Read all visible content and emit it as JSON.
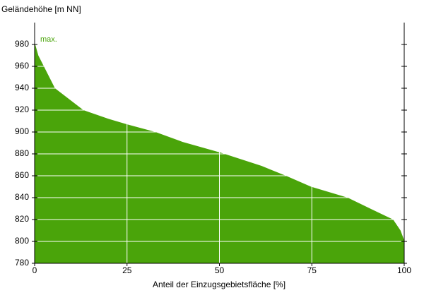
{
  "chart_data": {
    "type": "area",
    "y_label": "Geländehöhe [m NN]",
    "x_label": "Anteil der Einzugsgebietsfläche [%]",
    "annotation": "max.",
    "color": "#4aa40a",
    "grid_color": "#ffffff",
    "x": [
      0,
      1,
      2.5,
      5.5,
      13.2,
      20,
      25,
      32.7,
      40,
      50.5,
      61.4,
      68,
      74.8,
      84.7,
      91.4,
      97,
      99,
      100
    ],
    "values": [
      982,
      970,
      960,
      940,
      920,
      912,
      907,
      900,
      891,
      881,
      869,
      860,
      850,
      840,
      829,
      820,
      810,
      801
    ],
    "xlim": [
      0,
      100
    ],
    "xticks": [
      0,
      25,
      50,
      75,
      100
    ],
    "ylim": [
      780,
      1000
    ],
    "yticks": [
      780,
      800,
      820,
      840,
      860,
      880,
      900,
      920,
      940,
      960,
      980
    ],
    "grid": true
  }
}
